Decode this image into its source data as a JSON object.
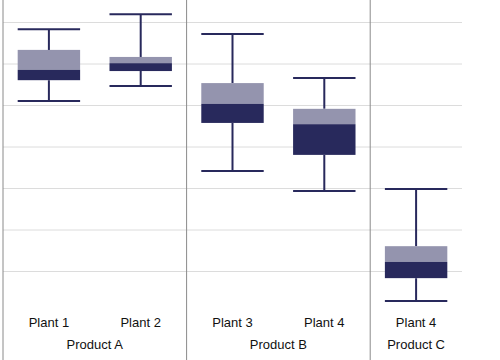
{
  "chart_data": {
    "type": "box",
    "categories": [
      "Plant 1",
      "Plant 2",
      "Plant 3",
      "Plant 4",
      "Plant 4"
    ],
    "groups": [
      {
        "label": "Product A",
        "count": 2
      },
      {
        "label": "Product B",
        "count": 2
      },
      {
        "label": "Product C",
        "count": 1
      }
    ],
    "min": [
      5.11,
      5.47,
      3.42,
      2.94,
      0.29
    ],
    "q1": [
      5.61,
      5.83,
      4.58,
      3.81,
      0.84
    ],
    "median": [
      5.86,
      6.02,
      5.04,
      4.55,
      1.23
    ],
    "q3": [
      6.34,
      6.17,
      5.54,
      4.92,
      1.61
    ],
    "max": [
      6.84,
      7.2,
      6.72,
      5.66,
      2.99
    ],
    "color": "#28295c",
    "ylim": [
      0,
      7.5
    ],
    "yticks": [
      1,
      2,
      3,
      4,
      5,
      6,
      7
    ],
    "grid": true,
    "tick_labels": "x"
  }
}
